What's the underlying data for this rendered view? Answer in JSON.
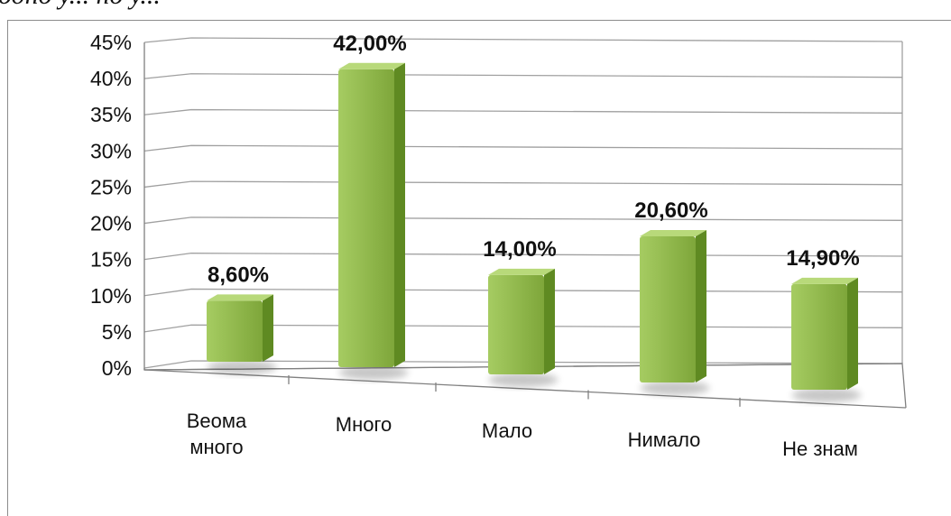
{
  "page": {
    "cutoff_caption": "одно у... но у..."
  },
  "colors": {
    "bar_front_top": "#a6cc62",
    "bar_front_bottom": "#7ea63a",
    "bar_side": "#5f8a22",
    "bar_top": "#b8d97a",
    "gridline": "#a0a0a0",
    "axis": "#808080"
  },
  "chart_data": {
    "type": "bar",
    "style": "3d-clustered-column",
    "categories": [
      "Веома много",
      "Много",
      "Мало",
      "Нимало",
      "Не знам"
    ],
    "category_label_lines": [
      [
        "Веома",
        "много"
      ],
      [
        "Много"
      ],
      [
        "Мало"
      ],
      [
        "Нимало"
      ],
      [
        "Не знам"
      ]
    ],
    "values": [
      8.6,
      42.0,
      14.0,
      20.6,
      14.9
    ],
    "data_labels": [
      "8,60%",
      "42,00%",
      "14,00%",
      "20,60%",
      "14,90%"
    ],
    "yticks": [
      "0%",
      "5%",
      "10%",
      "15%",
      "20%",
      "25%",
      "30%",
      "35%",
      "40%",
      "45%"
    ],
    "ylim": [
      0,
      45
    ],
    "grid": true,
    "legend": "none"
  }
}
